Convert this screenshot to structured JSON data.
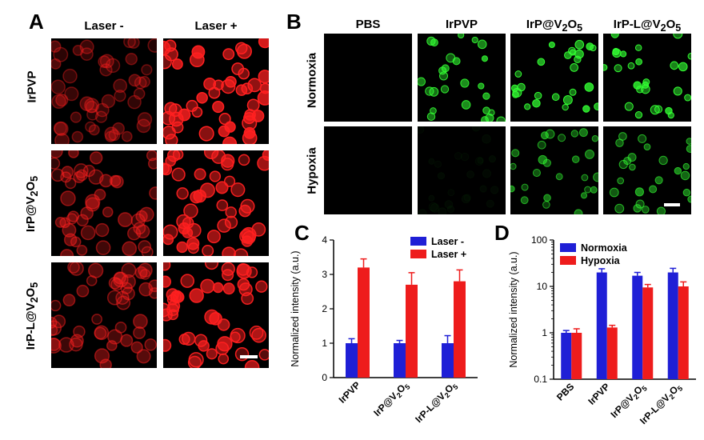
{
  "panelA": {
    "letter": "A",
    "columns": [
      "Laser -",
      "Laser +"
    ],
    "rows": [
      "IrPVP",
      "IrP@V2O5",
      "IrP-L@V2O5"
    ],
    "cell_color": "#ff2020"
  },
  "panelB": {
    "letter": "B",
    "columns": [
      "PBS",
      "IrPVP",
      "IrP@V2O5",
      "IrP-L@V2O5"
    ],
    "rows": [
      "Normoxia",
      "Hypoxia"
    ],
    "cell_color": "#33ff33"
  },
  "panelC": {
    "letter": "C",
    "chart_data": {
      "type": "bar",
      "categories": [
        "IrPVP",
        "IrP@V2O5",
        "IrP-L@V2O5"
      ],
      "series": [
        {
          "name": "Laser -",
          "color": "#1f1fd6",
          "values": [
            1.0,
            1.0,
            1.0
          ],
          "errors": [
            0.13,
            0.08,
            0.22
          ]
        },
        {
          "name": "Laser +",
          "color": "#ee1c1c",
          "values": [
            3.2,
            2.7,
            2.8
          ],
          "errors": [
            0.25,
            0.35,
            0.33
          ]
        }
      ],
      "ylabel": "Normalized intensity (a.u.)",
      "ylim": [
        0,
        4
      ],
      "yticks": [
        0,
        1,
        2,
        3,
        4
      ],
      "legend": "top-right"
    }
  },
  "panelD": {
    "letter": "D",
    "chart_data": {
      "type": "bar",
      "categories": [
        "PBS",
        "IrPVP",
        "IrP@V2O5",
        "IrP-L@V2O5"
      ],
      "series": [
        {
          "name": "Normoxia",
          "color": "#1f1fd6",
          "values": [
            1.0,
            20,
            17,
            20
          ],
          "errors": [
            0.12,
            4,
            3,
            4.5
          ]
        },
        {
          "name": "Hypoxia",
          "color": "#ee1c1c",
          "values": [
            1.0,
            1.3,
            9.5,
            10
          ],
          "errors": [
            0.22,
            0.15,
            1.5,
            2.5
          ]
        }
      ],
      "ylabel": "Normalized intensity (a.u.)",
      "yscale": "log",
      "ylim": [
        0.1,
        100
      ],
      "yticks": [
        0.1,
        1,
        10,
        100
      ],
      "yticklabels": [
        "0.1",
        "1",
        "10",
        "100"
      ],
      "legend": "top-left"
    }
  }
}
